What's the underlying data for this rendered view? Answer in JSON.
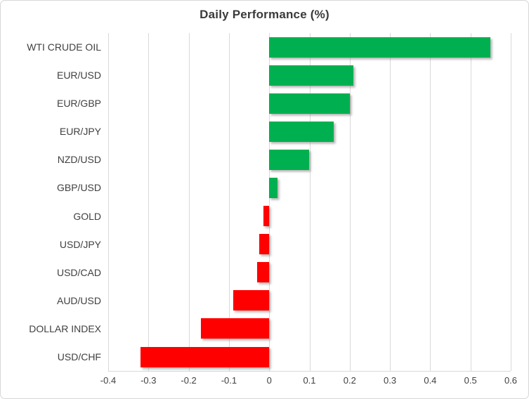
{
  "chart_data": {
    "type": "bar",
    "orientation": "horizontal",
    "title": "Daily Performance (%)",
    "categories": [
      "WTI CRUDE OIL",
      "EUR/USD",
      "EUR/GBP",
      "EUR/JPY",
      "NZD/USD",
      "GBP/USD",
      "GOLD",
      "USD/JPY",
      "USD/CAD",
      "AUD/USD",
      "DOLLAR INDEX",
      "USD/CHF"
    ],
    "values": [
      0.55,
      0.21,
      0.2,
      0.16,
      0.1,
      0.02,
      -0.015,
      -0.025,
      -0.03,
      -0.09,
      -0.17,
      -0.32
    ],
    "xlim": [
      -0.4,
      0.6
    ],
    "x_ticks": [
      -0.4,
      -0.3,
      -0.2,
      -0.1,
      0,
      0.1,
      0.2,
      0.3,
      0.4,
      0.5,
      0.6
    ],
    "x_tick_labels": [
      "-0.4",
      "-0.3",
      "-0.2",
      "-0.1",
      "0",
      "0.1",
      "0.2",
      "0.3",
      "0.4",
      "0.5",
      "0.6"
    ],
    "grid": true,
    "legend": false,
    "colors": {
      "positive_bar": "#00b050",
      "negative_bar": "#ff0000",
      "gridline": "#d9d9d9",
      "text": "#3f3f3f"
    }
  }
}
